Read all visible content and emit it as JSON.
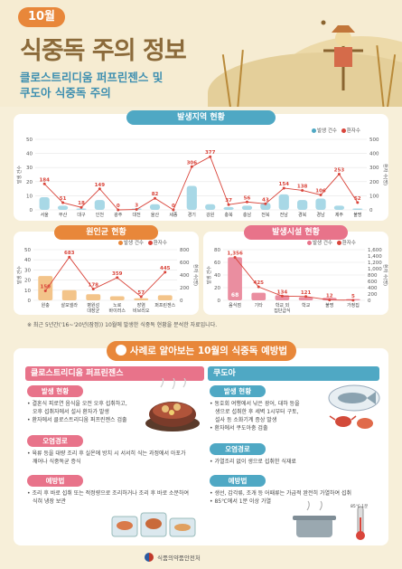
{
  "header": {
    "month": "10월",
    "title": "식중독 주의 정보",
    "subtitle_line1": "클로스트리디움 퍼프린젠스 및",
    "subtitle_line2": "쿠도아 식중독 주의"
  },
  "legend": {
    "cases": "발생 건수",
    "patients": "환자수"
  },
  "colors": {
    "orange": "#e8873a",
    "teal": "#4fa8c4",
    "pink": "#e8738a",
    "red_line": "#d9453b"
  },
  "chart_data": [
    {
      "type": "bar",
      "title": "발생지역 현황",
      "categories": [
        "서울",
        "부산",
        "대구",
        "인천",
        "광주",
        "대전",
        "울산",
        "세종",
        "경기",
        "강원",
        "충북",
        "충남",
        "전북",
        "전남",
        "경북",
        "경남",
        "제주",
        "불명"
      ],
      "series": [
        {
          "name": "발생 건수",
          "values": [
            9,
            3,
            1,
            7,
            0,
            1,
            4,
            0,
            17,
            4,
            2,
            3,
            5,
            11,
            7,
            8,
            3,
            1
          ]
        },
        {
          "name": "환자수",
          "values": [
            184,
            51,
            18,
            149,
            0,
            3,
            82,
            0,
            306,
            377,
            37,
            56,
            43,
            154,
            138,
            106,
            253,
            52
          ]
        }
      ],
      "data_labels_right": [
        "184",
        "51",
        "18",
        "149",
        "0",
        "3",
        "82",
        "0",
        "306",
        "377",
        "37",
        "56",
        "43",
        "154",
        "138",
        "106",
        "253",
        "52"
      ],
      "ylabel_left": "발생 건수",
      "ylabel_right": "환자 수(명)",
      "ylim_left": [
        0,
        50
      ],
      "ylim_right": [
        0,
        500
      ],
      "yticks_left": [
        "0",
        "10",
        "20",
        "30",
        "40",
        "50"
      ],
      "yticks_right": [
        "0",
        "100",
        "200",
        "300",
        "400",
        "500"
      ]
    },
    {
      "type": "bar",
      "title": "원인균 현황",
      "categories": [
        "원충",
        "살모넬라",
        "병원성 대장균",
        "노로 바이러스",
        "장염 비브리오",
        "퍼프린젠스"
      ],
      "category_lines": [
        [
          "원충"
        ],
        [
          "살모넬라"
        ],
        [
          "병원성",
          "대장균"
        ],
        [
          "노로",
          "바이러스"
        ],
        [
          "장염",
          "비브리오"
        ],
        [
          "퍼프린젠스"
        ]
      ],
      "series": [
        {
          "name": "발생 건수",
          "values": [
            24,
            10,
            6,
            4,
            2,
            5
          ]
        },
        {
          "name": "환자수",
          "values": [
            150,
            683,
            178,
            359,
            57,
            445
          ]
        }
      ],
      "data_labels_right": [
        "150",
        "683",
        "178",
        "359",
        "57",
        "445"
      ],
      "ylabel_left": "발생 건수",
      "ylabel_right": "환자 수(명)",
      "ylim_left": [
        0,
        50
      ],
      "ylim_right": [
        0,
        800
      ],
      "yticks_left": [
        "0",
        "10",
        "20",
        "30",
        "40",
        "50"
      ],
      "yticks_right": [
        "0",
        "200",
        "400",
        "600",
        "800"
      ]
    },
    {
      "type": "bar",
      "title": "발생시설 현황",
      "categories": [
        "음식점",
        "기타",
        "학교 외 집단급식",
        "학교",
        "불명",
        "가정집"
      ],
      "category_lines": [
        [
          "음식점"
        ],
        [
          "기타"
        ],
        [
          "학교 외",
          "집단급식"
        ],
        [
          "학교"
        ],
        [
          "불명"
        ],
        [
          "가정집"
        ]
      ],
      "series": [
        {
          "name": "발생 건수",
          "values": [
            68,
            12,
            8,
            5,
            4,
            2
          ]
        },
        {
          "name": "환자수",
          "values": [
            1356,
            425,
            134,
            121,
            12,
            5
          ]
        }
      ],
      "data_labels_right": [
        "1,356",
        "425",
        "134",
        "121",
        "12",
        "5"
      ],
      "bar_labels": [
        "68",
        "",
        "",
        "",
        "",
        ""
      ],
      "ylabel_left": "발생 건수",
      "ylabel_right": "환자 수(명)",
      "ylim_left": [
        0,
        80
      ],
      "ylim_right": [
        0,
        1600
      ],
      "yticks_left": [
        "0",
        "20",
        "40",
        "60",
        "80"
      ],
      "yticks_right": [
        "0",
        "200",
        "400",
        "600",
        "800",
        "1,000",
        "1,200",
        "1,400",
        "1,600"
      ]
    }
  ],
  "note": "※ 최근 5년간('16~'20년(잠정)) 10월에 발생한 식중독 현황을 분석한 자료입니다.",
  "prevention": {
    "header": "사례로 알아보는 10월의 식중독 예방법",
    "left": {
      "title": "클로스트리디움 퍼프린젠스",
      "s1_title": "발생 현황",
      "s1_text": [
        "• 결혼식 피로연 음식을 오전 오후 섭취하고,",
        "오후 섭취자에서 설사 환자가 발생",
        "• 환자에서 클로스트리디움 퍼프린젠스 검출"
      ],
      "s2_title": "오염경로",
      "s2_text": [
        "• 육류 등을 대량 조리 후 실온에 방치 시 서서히 식는 과정에서 아포가",
        "깨어나 식중독균 증식"
      ],
      "s3_title": "예방법",
      "s3_text": [
        "• 조리 후 바로 섭취 또는 적정량으로 조리하거나 조리 후 바로 소분하여",
        "식혀 냉장 보관"
      ]
    },
    "right": {
      "title": "쿠도아",
      "s1_title": "발생 현황",
      "s1_text": [
        "• 동호회 여행에서 낚은 광어, 대하 등을",
        "생으로 섭취한 후 세벽 1시부터 구토,",
        "설사 등 소화기계 증상 발생",
        "• 환자에서 쿠도아충 검출"
      ],
      "s2_title": "오염경로",
      "s2_text": [
        "• 가열조리 없이 생으로 섭취한 식재료"
      ],
      "s3_title": "예방법",
      "s3_text": [
        "• 생선, 갑각류, 조개 등 어패류는 가급적 완전히 가열하여 섭취",
        "• 85℃에서 1분 이상 가열"
      ],
      "thermo_label": "85℃ 1분"
    }
  },
  "footer": "식품의약품안전처"
}
